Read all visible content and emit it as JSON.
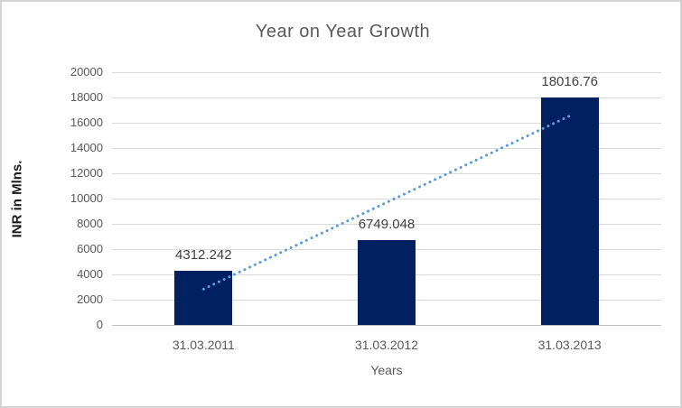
{
  "frame": {
    "background_color": "#ffffff",
    "border_color": "#d3d3d3"
  },
  "chart_data": {
    "type": "bar",
    "title": "Year on Year Growth",
    "categories": [
      "31.03.2011",
      "31.03.2012",
      "31.03.2013"
    ],
    "values": [
      4312.242,
      6749.048,
      18016.76
    ],
    "data_labels": [
      "4312.242",
      "6749.048",
      "18016.76"
    ],
    "xlabel": "Years",
    "ylabel": "INR in Mlns.",
    "ylim": [
      0,
      20000
    ],
    "ytick_step": 2000,
    "yticks": [
      0,
      2000,
      4000,
      6000,
      8000,
      10000,
      12000,
      14000,
      16000,
      18000,
      20000
    ],
    "grid": true,
    "legend": "none",
    "bar_color": "#002060",
    "trendline": {
      "type": "linear",
      "style": "dotted",
      "color": "#5B9BD5",
      "start_value": 2840,
      "end_value": 16545
    },
    "colors": {
      "title_text": "#595959",
      "axis_text": "#595959",
      "data_label_text": "#404040",
      "gridline": "#d9d9d9",
      "axis_line": "#bfbfbf"
    }
  }
}
